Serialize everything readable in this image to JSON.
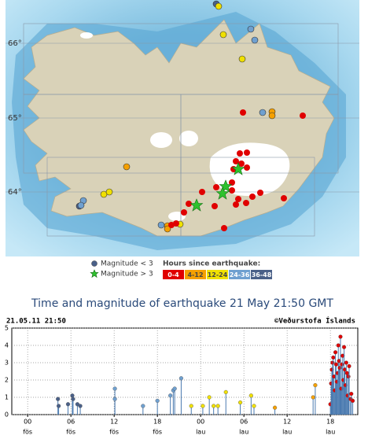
{
  "map": {
    "lat_labels": [
      "66°",
      "65°",
      "64°"
    ],
    "legend": {
      "mag_small": "Magnitude < 3",
      "mag_large": "Magnitude > 3",
      "hours_title": "Hours since earthquake:"
    }
  },
  "chart_data": {
    "type": "scatter",
    "title": "Time and magnitude of earthquake   21 May 21:50 GMT",
    "date_label": "21.05.11 21:50",
    "credit": "©Veðurstofa Íslands",
    "xlim": [
      -2.2,
      45.8
    ],
    "ylim": [
      0,
      5
    ],
    "xticks": [
      {
        "value": 0,
        "label": "00"
      },
      {
        "value": 6,
        "label": "06"
      },
      12,
      18,
      {
        "value": 24,
        "label": "00"
      },
      {
        "value": 30,
        "label": "06"
      },
      {
        "value": 36,
        "label": "12"
      },
      {
        "value": 42,
        "label": "18"
      }
    ],
    "xtick_days": [
      "fös",
      "fös",
      "fös",
      "fös",
      "lau",
      "lau",
      "lau",
      "lau"
    ],
    "yticks": [
      0,
      1,
      2,
      3,
      4,
      5
    ],
    "grid": true,
    "series": [
      {
        "name": "0-4",
        "color": "#e00000",
        "x": [
          42.0,
          42.1,
          42.2,
          42.3,
          42.4,
          42.5,
          42.6,
          42.7,
          42.8,
          42.9,
          43.0,
          43.1,
          43.2,
          43.3,
          43.4,
          43.5,
          43.6,
          43.7,
          43.8,
          43.9,
          44.0,
          44.1,
          44.2,
          44.3,
          44.4,
          44.5,
          44.6,
          44.8,
          44.9,
          45.1
        ],
        "values": [
          0.6,
          1.8,
          2.6,
          3.0,
          3.3,
          2.2,
          1.4,
          3.6,
          2.9,
          1.9,
          2.4,
          4.0,
          3.1,
          2.7,
          4.5,
          1.5,
          2.9,
          3.4,
          2.0,
          3.9,
          2.6,
          1.7,
          3.0,
          2.4,
          1.1,
          2.2,
          2.8,
          0.9,
          1.2,
          0.8
        ]
      },
      {
        "name": "4-12",
        "color": "#f5a000",
        "x": [
          34.3,
          39.6,
          39.9
        ],
        "values": [
          0.4,
          1.0,
          1.7
        ]
      },
      {
        "name": "12-24",
        "color": "#f0e000",
        "x": [
          22.7,
          24.3,
          25.2,
          25.8,
          26.4,
          27.5,
          29.5,
          31.0,
          31.4
        ],
        "values": [
          0.5,
          0.5,
          1.0,
          0.5,
          0.5,
          1.3,
          0.7,
          1.1,
          0.5
        ]
      },
      {
        "name": "24-36",
        "color": "#6fa0d0",
        "x": [
          12.1,
          12.1,
          16.0,
          18.0,
          19.8,
          20.2,
          20.4,
          21.3
        ],
        "values": [
          1.5,
          0.9,
          0.5,
          0.8,
          1.1,
          1.4,
          1.5,
          2.1
        ]
      },
      {
        "name": "36-48",
        "color": "#4a6088",
        "x": [
          4.2,
          4.3,
          5.6,
          6.2,
          6.3,
          6.9,
          7.3
        ],
        "values": [
          0.9,
          0.5,
          0.6,
          1.1,
          0.9,
          0.6,
          0.5
        ]
      }
    ]
  }
}
